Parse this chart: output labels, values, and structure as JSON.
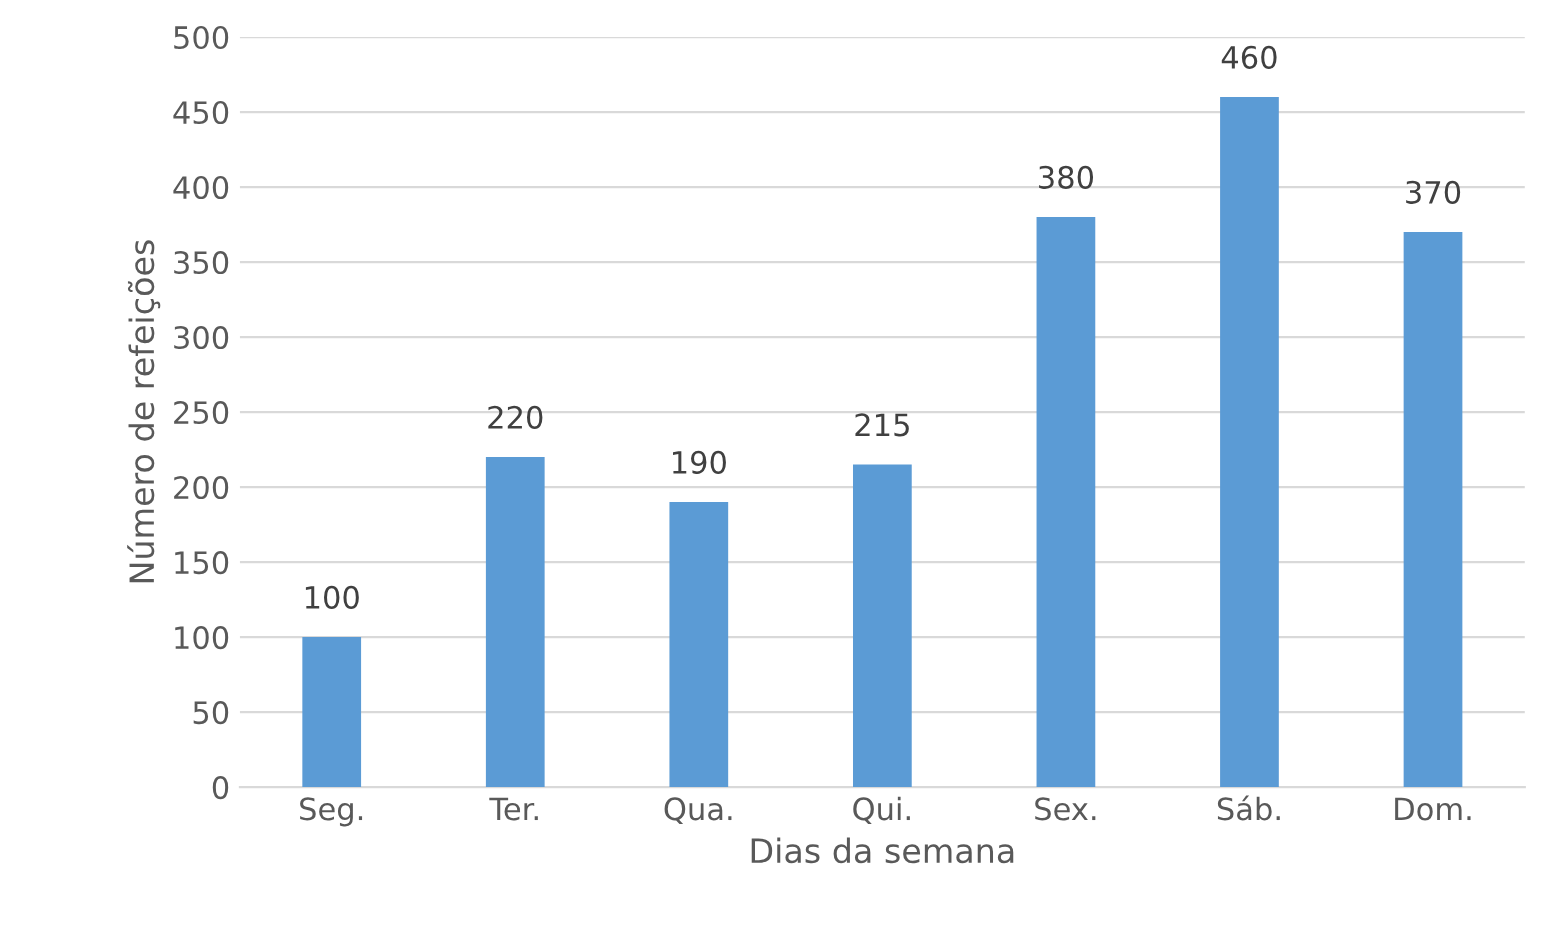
{
  "chart_data": {
    "type": "bar",
    "xlabel": "Dias da semana",
    "ylabel": "Número de refeições",
    "categories": [
      "Seg.",
      "Ter.",
      "Qua.",
      "Qui.",
      "Sex.",
      "Sáb.",
      "Dom."
    ],
    "values": [
      100,
      220,
      190,
      215,
      380,
      460,
      370
    ],
    "color": "#5b9bd5",
    "ylim": [
      0,
      500
    ],
    "yticks": [
      0,
      50,
      100,
      150,
      200,
      250,
      300,
      350,
      400,
      450,
      500
    ],
    "grid": "y",
    "data_labels": true
  }
}
